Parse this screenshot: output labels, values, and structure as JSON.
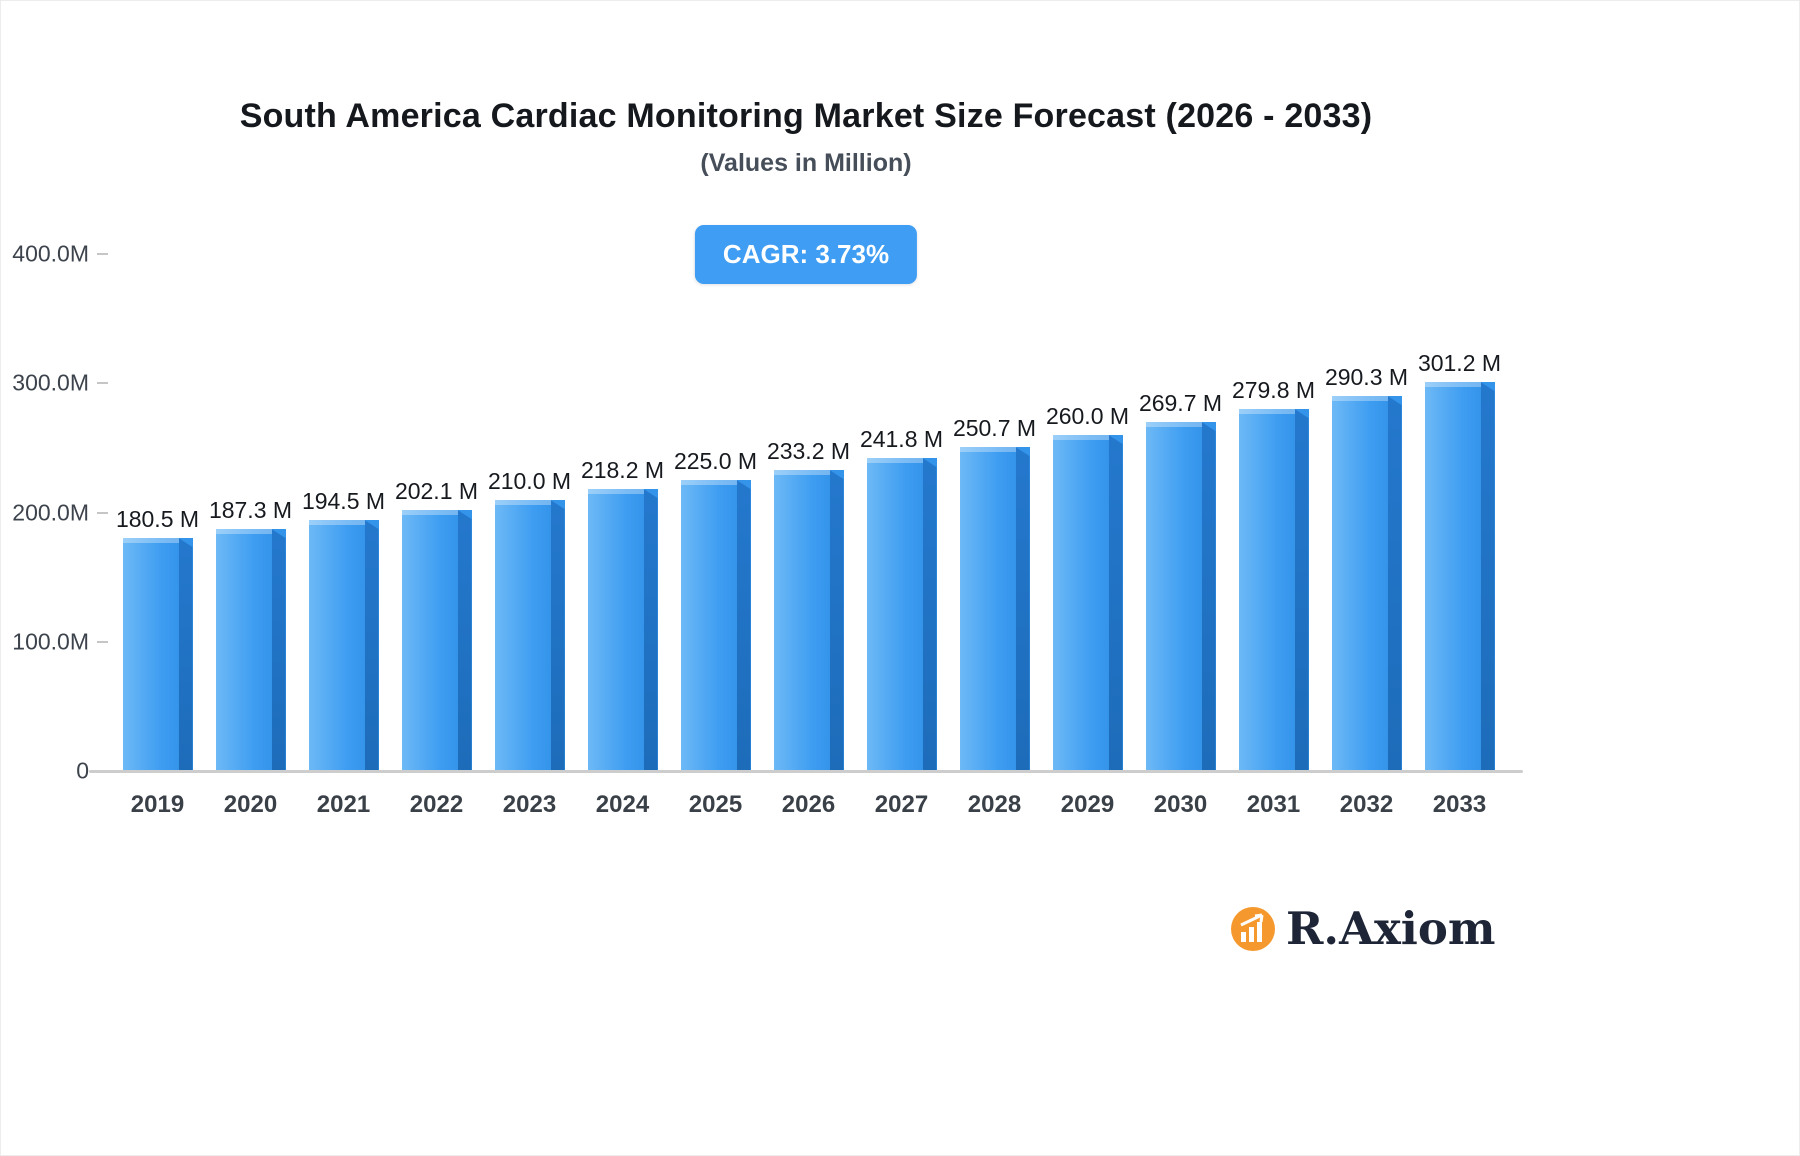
{
  "header": {
    "title": "South America Cardiac Monitoring Market Size Forecast (2026 - 2033)",
    "subtitle": "(Values in Million)",
    "cagr_badge": "CAGR: 3.73%"
  },
  "chart_data": {
    "type": "bar",
    "title": "South America Cardiac Monitoring Market Size Forecast (2026 - 2033)",
    "subtitle": "(Values in Million)",
    "cagr": "3.73%",
    "categories": [
      "2019",
      "2020",
      "2021",
      "2022",
      "2023",
      "2024",
      "2025",
      "2026",
      "2027",
      "2028",
      "2029",
      "2030",
      "2031",
      "2032",
      "2033"
    ],
    "values": [
      180.5,
      187.3,
      194.5,
      202.1,
      210.0,
      218.2,
      225.0,
      233.2,
      241.8,
      250.7,
      260.0,
      269.7,
      279.8,
      290.3,
      301.2
    ],
    "value_labels": [
      "180.5 M",
      "187.3 M",
      "194.5 M",
      "202.1 M",
      "210.0 M",
      "218.2 M",
      "225.0 M",
      "233.2 M",
      "241.8 M",
      "250.7 M",
      "260.0 M",
      "269.7 M",
      "279.8 M",
      "290.3 M",
      "301.2 M"
    ],
    "ylim": [
      0,
      400
    ],
    "yticks": [
      "400.0M",
      "300.0M",
      "200.0M",
      "100.0M",
      "0"
    ],
    "grid": false,
    "legend": "none",
    "bar_color": "#3e9df1",
    "bar_side_color": "#1e6fc0"
  },
  "logo": {
    "text": "R.Axiom",
    "icon": "bar-chart-growth-icon",
    "icon_color": "#f5992e",
    "text_color": "#1d2536"
  }
}
